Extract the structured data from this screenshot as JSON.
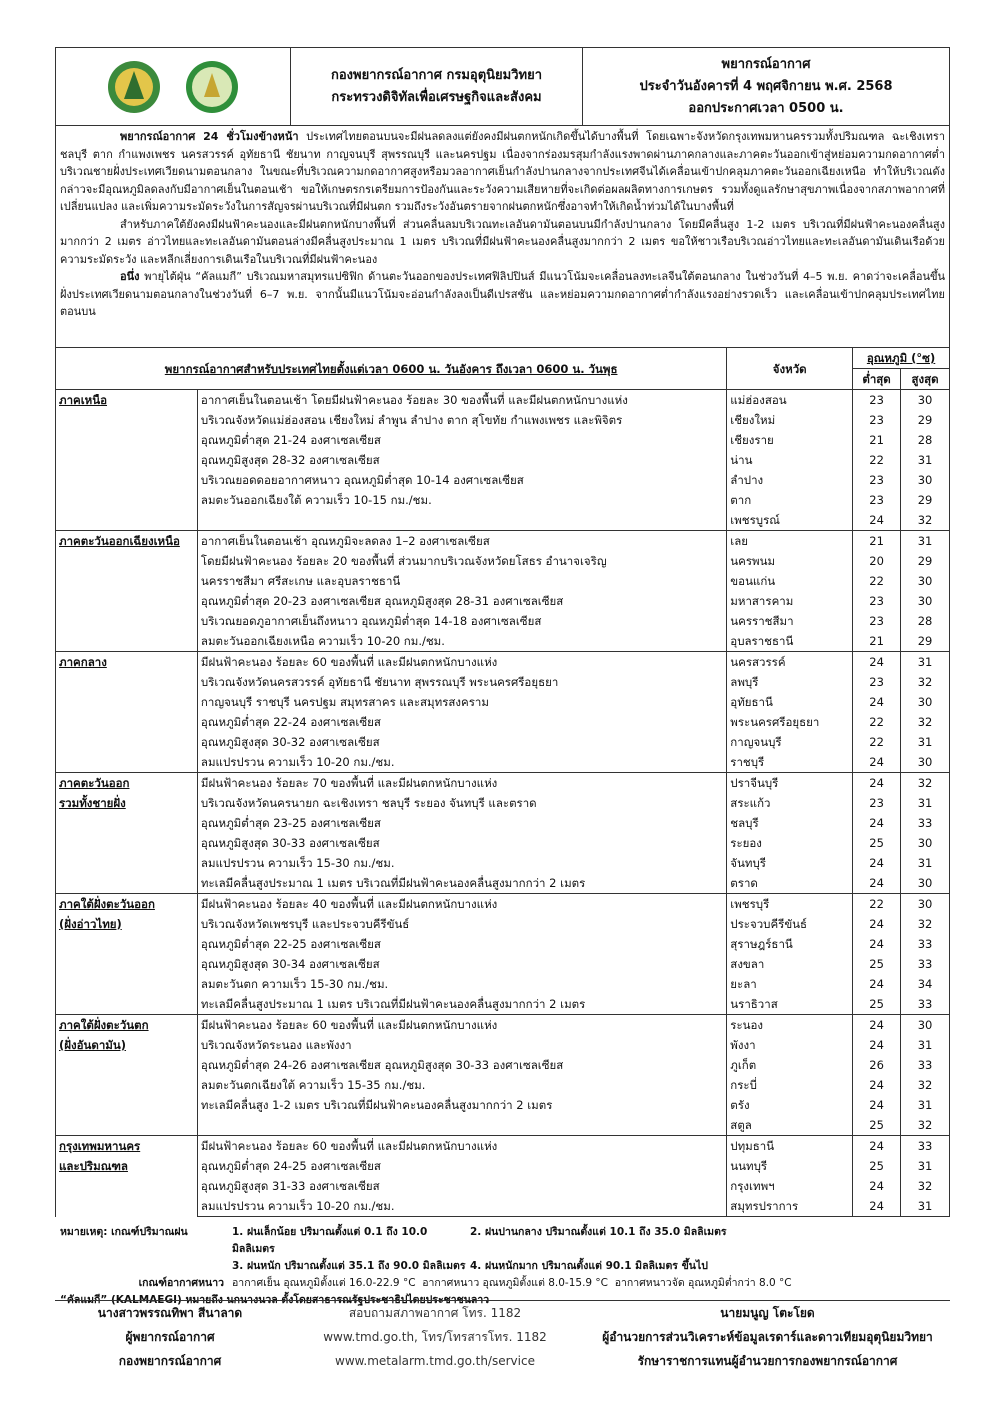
{
  "header": {
    "org": [
      "กองพยากรณ์อากาศ กรมอุตุนิยมวิทยา",
      "กระทรวงดิจิทัลเพื่อเศรษฐกิจและสังคม"
    ],
    "title": "พยากรณ์อากาศ",
    "date": "ประจำวันอังคารที่ 4 พฤศจิกายน พ.ศ. 2568",
    "issued": "ออกประกาศเวลา 0500 น."
  },
  "summary": [
    {
      "lead": "พยากรณ์อากาศ 24 ชั่วโมงข้างหน้า",
      "text": "ประเทศไทยตอนบนจะมีฝนลดลงแต่ยังคงมีฝนตกหนักเกิดขึ้นได้บางพื้นที่ โดยเฉพาะจังหวัดกรุงเทพมหานครรวมทั้งปริมณฑล ฉะเชิงเทรา ชลบุรี ตาก กำแพงเพชร นครสวรรค์ อุทัยธานี ชัยนาท กาญจนบุรี สุพรรณบุรี และนครปฐม เนื่องจากร่องมรสุมกำลังแรงพาดผ่านภาคกลางและภาคตะวันออกเข้าสู่หย่อมความกดอากาศต่ำบริเวณชายฝั่งประเทศเวียดนามตอนกลาง ในขณะที่บริเวณความกดอากาศสูงหรือมวลอากาศเย็นกำลังปานกลางจากประเทศจีนได้เคลื่อนเข้าปกคลุมภาคตะวันออกเฉียงเหนือ ทำให้บริเวณดังกล่าวจะมีอุณหภูมิลดลงกับมีอากาศเย็นในตอนเช้า ขอให้เกษตรกรเตรียมการป้องกันและระวังความเสียหายที่จะเกิดต่อผลผลิตทางการเกษตร รวมทั้งดูแลรักษาสุขภาพเนื่องจากสภาพอากาศที่เปลี่ยนแปลง และเพิ่มความระมัดระวังในการสัญจรผ่านบริเวณที่มีฝนตก รวมถึงระวังอันตรายจากฝนตกหนักซึ่งอาจทำให้เกิดน้ำท่วมได้ในบางพื้นที่"
    },
    {
      "lead": "",
      "text": "สำหรับภาคใต้ยังคงมีฝนฟ้าคะนองและมีฝนตกหนักบางพื้นที่ ส่วนคลื่นลมบริเวณทะเลอันดามันตอนบนมีกำลังปานกลาง โดยมีคลื่นสูง 1-2 เมตร บริเวณที่มีฝนฟ้าคะนองคลื่นสูงมากกว่า 2 เมตร อ่าวไทยและทะเลอันดามันตอนล่างมีคลื่นสูงประมาณ 1 เมตร บริเวณที่มีฝนฟ้าคะนองคลื่นสูงมากกว่า 2 เมตร ขอให้ชาวเรือบริเวณอ่าวไทยและทะเลอันดามันเดินเรือด้วยความระมัดระวัง และหลีกเลี่ยงการเดินเรือในบริเวณที่มีฝนฟ้าคะนอง"
    },
    {
      "lead": "อนึ่ง",
      "text": "พายุไต้ฝุ่น “คัลแมกี” บริเวณมหาสมุทรแปซิฟิก ด้านตะวันออกของประเทศฟิลิปปินส์ มีแนวโน้มจะเคลื่อนลงทะเลจีนใต้ตอนกลาง ในช่วงวันที่ 4–5 พ.ย. คาดว่าจะเคลื่อนขึ้นฝั่งประเทศเวียดนามตอนกลางในช่วงวันที่ 6–7 พ.ย. จากนั้นมีแนวโน้มจะอ่อนกำลังลงเป็นดีเปรสชัน และหย่อมความกดอากาศต่ำกำลังแรงอย่างรวดเร็ว และเคลื่อนเข้าปกคลุมประเทศไทยตอนบน"
    }
  ],
  "table": {
    "title": "พยากรณ์อากาศสำหรับประเทศไทยตั้งแต่เวลา 0600 น. วันอังคาร ถึงเวลา 0600 น. วันพุธ",
    "province_header": "จังหวัด",
    "temp_header": "อุณหภูมิ (°ซ)",
    "min_header": "ต่ำสุด",
    "max_header": "สูงสุด",
    "regions": [
      {
        "name": [
          "ภาคเหนือ"
        ],
        "forecast": [
          "อากาศเย็นในตอนเช้า โดยมีฝนฟ้าคะนอง ร้อยละ 30 ของพื้นที่ และมีฝนตกหนักบางแห่ง",
          "บริเวณจังหวัดแม่ฮ่องสอน เชียงใหม่ ลำพูน ลำปาง ตาก สุโขทัย กำแพงเพชร และพิจิตร",
          "อุณหภูมิต่ำสุด 21-24 องศาเซลเซียส",
          "อุณหภูมิสูงสุด 28-32 องศาเซลเซียส",
          "บริเวณยอดดอยอากาศหนาว อุณหภูมิต่ำสุด 10-14 องศาเซลเซียส",
          "ลมตะวันออกเฉียงใต้ ความเร็ว 10-15 กม./ชม."
        ],
        "provinces": [
          [
            "แม่ฮ่องสอน",
            23,
            30
          ],
          [
            "เชียงใหม่",
            23,
            29
          ],
          [
            "เชียงราย",
            21,
            28
          ],
          [
            "น่าน",
            22,
            31
          ],
          [
            "ลำปาง",
            23,
            30
          ],
          [
            "ตาก",
            23,
            29
          ],
          [
            "เพชรบูรณ์",
            24,
            32
          ]
        ]
      },
      {
        "name": [
          "ภาคตะวันออกเฉียงเหนือ"
        ],
        "forecast": [
          "อากาศเย็นในตอนเช้า อุณหภูมิจะลดลง 1–2 องศาเซลเซียส",
          "โดยมีฝนฟ้าคะนอง ร้อยละ 20 ของพื้นที่ ส่วนมากบริเวณจังหวัดยโสธร อำนาจเจริญ",
          "นครราชสีมา ศรีสะเกษ และอุบลราชธานี",
          "อุณหภูมิต่ำสุด 20-23 องศาเซลเซียส อุณหภูมิสูงสุด 28-31 องศาเซลเซียส",
          "บริเวณยอดภูอากาศเย็นถึงหนาว อุณหภูมิต่ำสุด 14-18 องศาเซลเซียส",
          "ลมตะวันออกเฉียงเหนือ ความเร็ว 10-20 กม./ชม."
        ],
        "provinces": [
          [
            "เลย",
            21,
            31
          ],
          [
            "นครพนม",
            20,
            29
          ],
          [
            "ขอนแก่น",
            22,
            30
          ],
          [
            "มหาสารคาม",
            23,
            30
          ],
          [
            "นครราชสีมา",
            23,
            28
          ],
          [
            "อุบลราชธานี",
            21,
            29
          ]
        ]
      },
      {
        "name": [
          "ภาคกลาง"
        ],
        "forecast": [
          "มีฝนฟ้าคะนอง ร้อยละ 60 ของพื้นที่ และมีฝนตกหนักบางแห่ง",
          "บริเวณจังหวัดนครสวรรค์ อุทัยธานี ชัยนาท สุพรรณบุรี พระนครศรีอยุธยา",
          "กาญจนบุรี ราชบุรี นครปฐม สมุทรสาคร และสมุทรสงคราม",
          "อุณหภูมิต่ำสุด 22-24 องศาเซลเซียส",
          "อุณหภูมิสูงสุด 30-32 องศาเซลเซียส",
          "ลมแปรปรวน ความเร็ว 10-20 กม./ชม."
        ],
        "provinces": [
          [
            "นครสวรรค์",
            24,
            31
          ],
          [
            "ลพบุรี",
            23,
            32
          ],
          [
            "อุทัยธานี",
            24,
            30
          ],
          [
            "พระนครศรีอยุธยา",
            22,
            32
          ],
          [
            "กาญจนบุรี",
            22,
            31
          ],
          [
            "ราชบุรี",
            24,
            30
          ]
        ]
      },
      {
        "name": [
          "ภาคตะวันออก",
          "รวมทั้งชายฝั่ง"
        ],
        "forecast": [
          "มีฝนฟ้าคะนอง ร้อยละ 70 ของพื้นที่ และมีฝนตกหนักบางแห่ง",
          "บริเวณจังหวัดนครนายก ฉะเชิงเทรา ชลบุรี ระยอง จันทบุรี และตราด",
          "อุณหภูมิต่ำสุด 23-25 องศาเซลเซียส",
          "อุณหภูมิสูงสุด 30-33 องศาเซลเซียส",
          "ลมแปรปรวน ความเร็ว 15-30 กม./ชม.",
          "ทะเลมีคลื่นสูงประมาณ 1 เมตร บริเวณที่มีฝนฟ้าคะนองคลื่นสูงมากกว่า 2 เมตร"
        ],
        "provinces": [
          [
            "ปราจีนบุรี",
            24,
            32
          ],
          [
            "สระแก้ว",
            23,
            31
          ],
          [
            "ชลบุรี",
            24,
            33
          ],
          [
            "ระยอง",
            25,
            30
          ],
          [
            "จันทบุรี",
            24,
            31
          ],
          [
            "ตราด",
            24,
            30
          ]
        ]
      },
      {
        "name": [
          "ภาคใต้ฝั่งตะวันออก",
          "(ฝั่งอ่าวไทย)"
        ],
        "forecast": [
          "มีฝนฟ้าคะนอง ร้อยละ 40 ของพื้นที่ และมีฝนตกหนักบางแห่ง",
          "บริเวณจังหวัดเพชรบุรี และประจวบคีรีขันธ์",
          "อุณหภูมิต่ำสุด 22-25 องศาเซลเซียส",
          "อุณหภูมิสูงสุด 30-34 องศาเซลเซียส",
          "ลมตะวันตก ความเร็ว 15-30 กม./ชม.",
          "ทะเลมีคลื่นสูงประมาณ 1 เมตร บริเวณที่มีฝนฟ้าคะนองคลื่นสูงมากกว่า 2 เมตร"
        ],
        "provinces": [
          [
            "เพชรบุรี",
            22,
            30
          ],
          [
            "ประจวบคีรีขันธ์",
            24,
            32
          ],
          [
            "สุราษฎร์ธานี",
            24,
            33
          ],
          [
            "สงขลา",
            25,
            33
          ],
          [
            "ยะลา",
            24,
            34
          ],
          [
            "นราธิวาส",
            25,
            33
          ]
        ]
      },
      {
        "name": [
          "ภาคใต้ฝั่งตะวันตก",
          "(ฝั่งอันดามัน)"
        ],
        "forecast": [
          "มีฝนฟ้าคะนอง ร้อยละ 60 ของพื้นที่ และมีฝนตกหนักบางแห่ง",
          "บริเวณจังหวัดระนอง และพังงา",
          "อุณหภูมิต่ำสุด 24-26 องศาเซลเซียส อุณหภูมิสูงสุด 30-33 องศาเซลเซียส",
          "ลมตะวันตกเฉียงใต้ ความเร็ว 15-35 กม./ชม.",
          "ทะเลมีคลื่นสูง 1-2 เมตร บริเวณที่มีฝนฟ้าคะนองคลื่นสูงมากกว่า 2 เมตร"
        ],
        "provinces": [
          [
            "ระนอง",
            24,
            30
          ],
          [
            "พังงา",
            24,
            31
          ],
          [
            "ภูเก็ต",
            26,
            33
          ],
          [
            "กระบี่",
            24,
            32
          ],
          [
            "ตรัง",
            24,
            31
          ],
          [
            "สตูล",
            25,
            32
          ]
        ]
      },
      {
        "name": [
          "กรุงเทพมหานคร",
          "และปริมณฑล"
        ],
        "forecast": [
          "มีฝนฟ้าคะนอง ร้อยละ 60 ของพื้นที่ และมีฝนตกหนักบางแห่ง",
          "อุณหภูมิต่ำสุด 24-25 องศาเซลเซียส",
          "อุณหภูมิสูงสุด 31-33 องศาเซลเซียส",
          "ลมแปรปรวน ความเร็ว 10-20 กม./ชม."
        ],
        "provinces": [
          [
            "ปทุมธานี",
            24,
            33
          ],
          [
            "นนทบุรี",
            25,
            31
          ],
          [
            "กรุงเทพฯ",
            24,
            32
          ],
          [
            "สมุทรปราการ",
            24,
            31
          ]
        ]
      }
    ]
  },
  "notes": {
    "rain_label": "หมายเหตุ: เกณฑ์ปริมาณฝน",
    "rain": [
      "1. ฝนเล็กน้อย ปริมาณตั้งแต่ 0.1 ถึง 10.0 มิลลิเมตร",
      "2. ฝนปานกลาง ปริมาณตั้งแต่ 10.1 ถึง 35.0 มิลลิเมตร",
      "3. ฝนหนัก ปริมาณตั้งแต่ 35.1 ถึง 90.0 มิลลิเมตร",
      "4. ฝนหนักมาก ปริมาณตั้งแต่ 90.1 มิลลิเมตร ขึ้นไป"
    ],
    "cold_label": "เกณฑ์อากาศหนาว",
    "cold": "อากาศเย็น อุณหภูมิตั้งแต่ 16.0-22.9 °C  อากาศหนาว อุณหภูมิตั้งแต่ 8.0-15.9 °C  อากาศหนาวจัด อุณหภูมิต่ำกว่า 8.0 °C",
    "name_note": "“คัลแมกี” (KALMAEGI) หมายถึง นกนางนวล ตั้งโดยสาธารณรัฐประชาธิปไตยประชาชนลาว"
  },
  "footer": {
    "left": [
      "นางสาวพรรณทิพา สีนาลาด",
      "ผู้พยากรณ์อากาศ",
      "กองพยากรณ์อากาศ"
    ],
    "center": [
      "สอบถามสภาพอากาศ โทร. 1182",
      "www.tmd.go.th, โทร/โทรสารโทร. 1182",
      "www.metalarm.tmd.go.th/service"
    ],
    "right": [
      "นายมนูญ โตะโยด",
      "ผู้อำนวยการส่วนวิเคราะห์ข้อมูลเรดาร์และดาวเทียมอุตุนิยมวิทยา",
      "รักษาราชการแทนผู้อำนวยการกองพยากรณ์อากาศ"
    ]
  }
}
